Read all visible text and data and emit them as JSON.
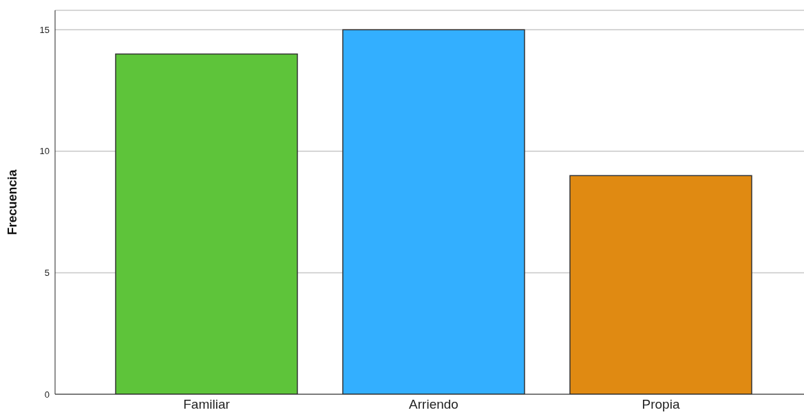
{
  "chart_data": {
    "type": "bar",
    "ylabel": "Frecuencia",
    "categories": [
      "Familiar",
      "Arriendo",
      "Propia"
    ],
    "values": [
      14,
      15,
      9
    ],
    "colors": [
      "#5ec43a",
      "#33afff",
      "#e08a12"
    ],
    "ylim": [
      0,
      15.8
    ],
    "yticks": [
      0,
      5,
      10,
      15
    ],
    "grid": "y",
    "legend": false
  }
}
